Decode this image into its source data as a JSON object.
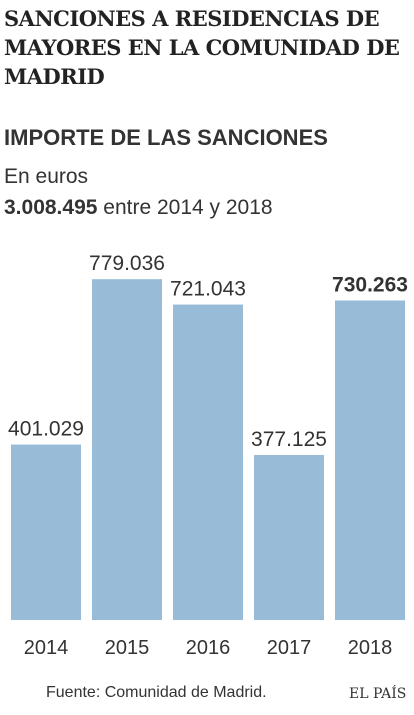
{
  "headline": "Sanciones a residencias de mayores en la Comunidad de Madrid",
  "chart_data": {
    "type": "bar",
    "title": "IMPORTE DE LAS SANCIONES",
    "subtitle": "En euros",
    "total": {
      "value": "3.008.495",
      "text": " entre 2014 y 2018"
    },
    "categories": [
      "2014",
      "2015",
      "2016",
      "2017",
      "2018"
    ],
    "values": [
      401029,
      779036,
      721043,
      377125,
      730263
    ],
    "value_labels": [
      "401.029",
      "779.036",
      "721.043",
      "377.125",
      "730.263"
    ],
    "highlight_index": 4,
    "ylim": [
      0,
      800000
    ],
    "grid": false,
    "legend": "none",
    "xlabel": "",
    "ylabel": ""
  },
  "footer": {
    "source": "Fuente: Comunidad de Madrid.",
    "brand": "EL PAÍS"
  },
  "colors": {
    "bar": "#98bcd8",
    "text": "#333333",
    "headline": "#222222"
  }
}
